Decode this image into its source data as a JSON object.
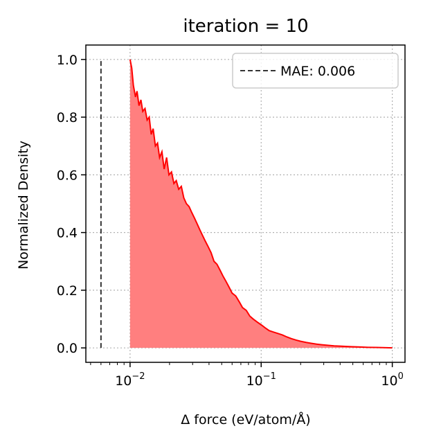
{
  "chart_data": {
    "type": "area",
    "title": "iteration = 10",
    "xlabel": "Δ force (eV/atom/Å)",
    "ylabel": "Normalized Density",
    "xscale": "log",
    "xlim": [
      0.0046,
      1.25
    ],
    "ylim": [
      -0.05,
      1.05
    ],
    "grid": true,
    "legend_position": "top-right",
    "x_ticks": [
      {
        "base": "10",
        "exp": "−2",
        "value": 0.01
      },
      {
        "base": "10",
        "exp": "−1",
        "value": 0.1
      },
      {
        "base": "10",
        "exp": "0",
        "value": 1
      }
    ],
    "y_ticks": [
      "0.0",
      "0.2",
      "0.4",
      "0.6",
      "0.8",
      "1.0"
    ],
    "colors": {
      "line": "#ff0000",
      "fill": "#ff7f7f",
      "mae": "#333333",
      "grid": "#b0b0b0"
    },
    "mae_line": {
      "label": "MAE: 0.006",
      "x": 0.006,
      "y_range": [
        0,
        1.0
      ]
    },
    "series": [
      {
        "x": [
          0.01,
          0.0103,
          0.0106,
          0.011,
          0.0113,
          0.0117,
          0.0121,
          0.0125,
          0.013,
          0.0135,
          0.014,
          0.0145,
          0.015,
          0.0156,
          0.0162,
          0.0168,
          0.0175,
          0.0182,
          0.019,
          0.0198,
          0.0207,
          0.0216,
          0.0225,
          0.0235,
          0.0246,
          0.0257,
          0.0269,
          0.0282,
          0.0295,
          0.031,
          0.0325,
          0.034,
          0.0357,
          0.0375,
          0.0395,
          0.0415,
          0.0437,
          0.046,
          0.0485,
          0.051,
          0.054,
          0.057,
          0.06,
          0.064,
          0.068,
          0.072,
          0.077,
          0.082,
          0.087,
          0.093,
          0.1,
          0.107,
          0.115,
          0.124,
          0.134,
          0.145,
          0.157,
          0.17,
          0.185,
          0.2,
          0.22,
          0.24,
          0.265,
          0.29,
          0.32,
          0.36,
          0.4,
          0.45,
          0.5,
          0.57,
          0.65,
          0.75,
          0.85,
          1.0
        ],
        "y": [
          1.0,
          0.97,
          0.91,
          0.87,
          0.89,
          0.84,
          0.86,
          0.82,
          0.83,
          0.79,
          0.8,
          0.74,
          0.76,
          0.7,
          0.71,
          0.66,
          0.68,
          0.62,
          0.66,
          0.6,
          0.61,
          0.57,
          0.58,
          0.55,
          0.56,
          0.52,
          0.5,
          0.49,
          0.47,
          0.45,
          0.43,
          0.41,
          0.39,
          0.37,
          0.35,
          0.33,
          0.3,
          0.29,
          0.27,
          0.25,
          0.23,
          0.21,
          0.19,
          0.18,
          0.16,
          0.14,
          0.13,
          0.11,
          0.1,
          0.09,
          0.08,
          0.07,
          0.06,
          0.055,
          0.05,
          0.045,
          0.038,
          0.032,
          0.027,
          0.023,
          0.019,
          0.016,
          0.013,
          0.011,
          0.009,
          0.007,
          0.006,
          0.005,
          0.004,
          0.003,
          0.002,
          0.0015,
          0.001,
          0.0
        ]
      }
    ]
  }
}
